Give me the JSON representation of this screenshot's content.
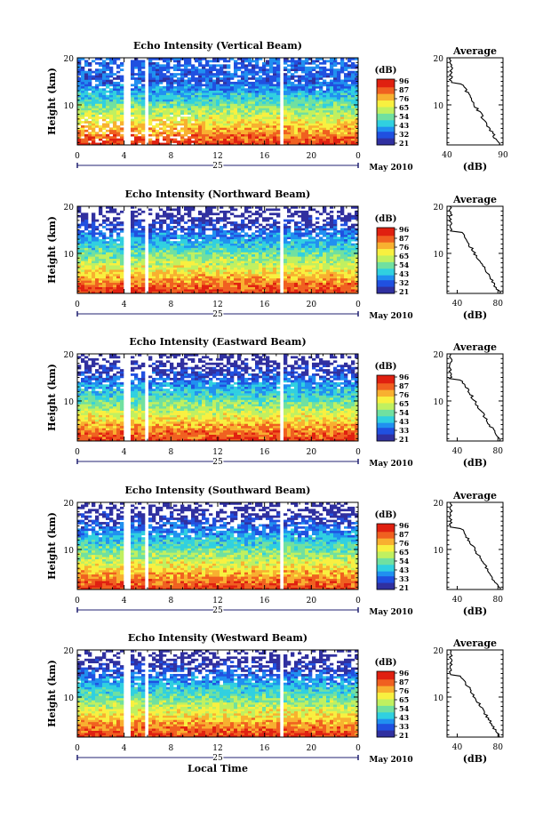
{
  "chart_data": [
    {
      "type": "heatmap",
      "title": "Echo Intensity (Vertical Beam)",
      "ylabel": "Height (km)",
      "x_ticks": [
        "0",
        "4",
        "8",
        "12",
        "16",
        "20",
        "0"
      ],
      "y_ticks": [
        "20",
        "10"
      ],
      "xlim": [
        0,
        24
      ],
      "ylim": [
        1.5,
        20
      ],
      "date_number": "25",
      "date_label": "May 2010",
      "colorbar": {
        "label": "(dB)",
        "ticks": [
          "96",
          "87",
          "76",
          "65",
          "54",
          "43",
          "32",
          "21"
        ],
        "range": [
          21,
          96
        ]
      },
      "data_gaps_hours": [
        [
          4.1,
          4.6
        ],
        [
          5.8,
          6.2
        ],
        [
          17.3,
          17.7
        ]
      ],
      "profile": {
        "title": "Average",
        "xlabel": "(dB)",
        "x_ticks": [
          "40",
          "90"
        ],
        "xlim": [
          40,
          90
        ],
        "y_ticks": [
          "20",
          "10"
        ],
        "ylim": [
          1.5,
          20
        ]
      }
    },
    {
      "type": "heatmap",
      "title": "Echo Intensity (Northward Beam)",
      "ylabel": "Height (km)",
      "x_ticks": [
        "0",
        "4",
        "8",
        "12",
        "16",
        "20",
        "0"
      ],
      "y_ticks": [
        "20",
        "10"
      ],
      "xlim": [
        0,
        24
      ],
      "ylim": [
        1.5,
        20
      ],
      "date_number": "25",
      "date_label": "May 2010",
      "colorbar": {
        "label": "(dB)",
        "ticks": [
          "96",
          "87",
          "76",
          "65",
          "54",
          "43",
          "32",
          "21"
        ],
        "range": [
          21,
          96
        ]
      },
      "data_gaps_hours": [
        [
          4.1,
          4.6
        ],
        [
          5.8,
          6.2
        ],
        [
          17.3,
          17.7
        ]
      ],
      "profile": {
        "title": "Average",
        "xlabel": "(dB)",
        "x_ticks": [
          "40",
          "80"
        ],
        "xlim": [
          30,
          85
        ],
        "y_ticks": [
          "20",
          "10"
        ],
        "ylim": [
          1.5,
          20
        ]
      }
    },
    {
      "type": "heatmap",
      "title": "Echo Intensity (Eastward Beam)",
      "ylabel": "Height (km)",
      "x_ticks": [
        "0",
        "4",
        "8",
        "12",
        "16",
        "20",
        "0"
      ],
      "y_ticks": [
        "20",
        "10"
      ],
      "xlim": [
        0,
        24
      ],
      "ylim": [
        1.5,
        20
      ],
      "date_number": "25",
      "date_label": "May 2010",
      "colorbar": {
        "label": "(dB)",
        "ticks": [
          "96",
          "87",
          "76",
          "65",
          "54",
          "43",
          "33",
          "21"
        ],
        "range": [
          21,
          96
        ]
      },
      "data_gaps_hours": [
        [
          4.1,
          4.6
        ],
        [
          5.8,
          6.2
        ],
        [
          17.3,
          17.7
        ]
      ],
      "profile": {
        "title": "Average",
        "xlabel": "(dB)",
        "x_ticks": [
          "40",
          "80"
        ],
        "xlim": [
          30,
          85
        ],
        "y_ticks": [
          "20",
          "10"
        ],
        "ylim": [
          1.5,
          20
        ]
      }
    },
    {
      "type": "heatmap",
      "title": "Echo Intensity (Southward Beam)",
      "ylabel": "Height (km)",
      "x_ticks": [
        "0",
        "4",
        "8",
        "12",
        "16",
        "20",
        "0"
      ],
      "y_ticks": [
        "20",
        "10"
      ],
      "xlim": [
        0,
        24
      ],
      "ylim": [
        1.5,
        20
      ],
      "date_number": "25",
      "date_label": "May 2010",
      "colorbar": {
        "label": "(dB)",
        "ticks": [
          "96",
          "87",
          "76",
          "65",
          "54",
          "43",
          "33",
          "21"
        ],
        "range": [
          21,
          96
        ]
      },
      "data_gaps_hours": [
        [
          4.1,
          4.6
        ],
        [
          5.8,
          6.2
        ],
        [
          17.3,
          17.7
        ]
      ],
      "profile": {
        "title": "Average",
        "xlabel": "(dB)",
        "x_ticks": [
          "40",
          "80"
        ],
        "xlim": [
          30,
          85
        ],
        "y_ticks": [
          "20",
          "10"
        ],
        "ylim": [
          1.5,
          20
        ]
      }
    },
    {
      "type": "heatmap",
      "title": "Echo Intensity (Westward Beam)",
      "ylabel": "Height (km)",
      "x_ticks": [
        "0",
        "4",
        "8",
        "12",
        "16",
        "20",
        "0"
      ],
      "y_ticks": [
        "20",
        "10"
      ],
      "xlim": [
        0,
        24
      ],
      "ylim": [
        1.5,
        20
      ],
      "date_number": "25",
      "date_label": "May 2010",
      "xlabel": "Local Time",
      "colorbar": {
        "label": "(dB)",
        "ticks": [
          "96",
          "87",
          "76",
          "65",
          "54",
          "43",
          "33",
          "21"
        ],
        "range": [
          21,
          96
        ]
      },
      "data_gaps_hours": [
        [
          4.1,
          4.6
        ],
        [
          5.8,
          6.2
        ],
        [
          17.3,
          17.7
        ]
      ],
      "profile": {
        "title": "Average",
        "xlabel": "(dB)",
        "x_ticks": [
          "40",
          "80"
        ],
        "xlim": [
          30,
          85
        ],
        "y_ticks": [
          "20",
          "10"
        ],
        "ylim": [
          1.5,
          20
        ]
      }
    }
  ],
  "colors": {
    "colormap": [
      "#3030a0",
      "#2050e0",
      "#2090f0",
      "#30d0e0",
      "#70e0a0",
      "#c0f060",
      "#f8f040",
      "#f8b030",
      "#f06020",
      "#e02010"
    ]
  }
}
